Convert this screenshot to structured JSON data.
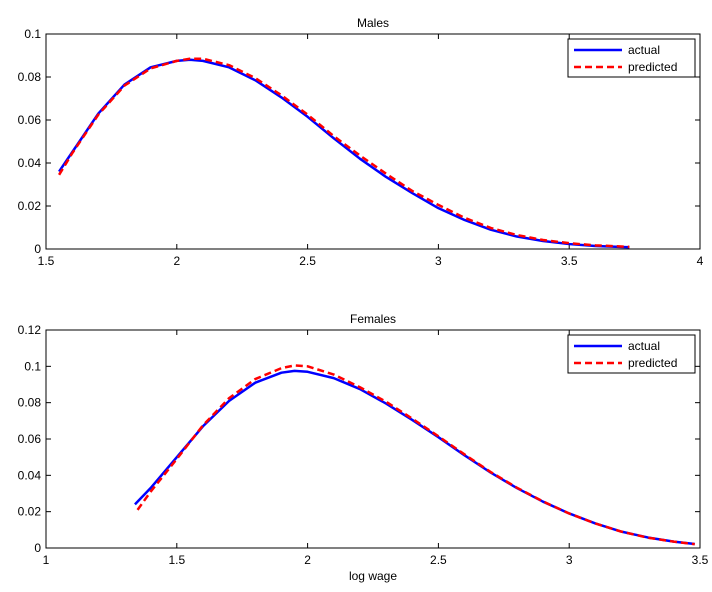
{
  "chart_data": [
    {
      "type": "line",
      "title": "Males",
      "xlabel": "",
      "ylabel": "",
      "xlim": [
        1.5,
        4
      ],
      "ylim": [
        0,
        0.1
      ],
      "xticks": [
        "1.5",
        "2",
        "2.5",
        "3",
        "3.5",
        "4"
      ],
      "yticks": [
        "0",
        "0.02",
        "0.04",
        "0.06",
        "0.08",
        "0.1"
      ],
      "xtick_values": [
        1.5,
        2,
        2.5,
        3,
        3.5,
        4
      ],
      "ytick_values": [
        0,
        0.02,
        0.04,
        0.06,
        0.08,
        0.1
      ],
      "grid": false,
      "legend_position": "top-right",
      "series": [
        {
          "name": "actual",
          "color": "#0000ff",
          "style": "solid",
          "x": [
            1.55,
            1.6,
            1.7,
            1.8,
            1.9,
            2.0,
            2.05,
            2.1,
            2.2,
            2.3,
            2.4,
            2.5,
            2.6,
            2.7,
            2.8,
            2.9,
            3.0,
            3.1,
            3.2,
            3.3,
            3.4,
            3.5,
            3.6,
            3.73
          ],
          "y": [
            0.036,
            0.045,
            0.063,
            0.0765,
            0.0845,
            0.0875,
            0.088,
            0.0875,
            0.0845,
            0.0785,
            0.0705,
            0.0615,
            0.0515,
            0.042,
            0.0335,
            0.026,
            0.019,
            0.0135,
            0.009,
            0.0058,
            0.0037,
            0.0023,
            0.0014,
            0.0008
          ]
        },
        {
          "name": "predicted",
          "color": "#ff0000",
          "style": "dashed",
          "x": [
            1.55,
            1.6,
            1.7,
            1.8,
            1.9,
            2.0,
            2.05,
            2.1,
            2.2,
            2.3,
            2.4,
            2.5,
            2.6,
            2.7,
            2.8,
            2.9,
            3.0,
            3.1,
            3.2,
            3.3,
            3.4,
            3.5,
            3.6,
            3.73
          ],
          "y": [
            0.0345,
            0.0445,
            0.0625,
            0.076,
            0.084,
            0.0875,
            0.0885,
            0.0885,
            0.0855,
            0.0795,
            0.0715,
            0.0625,
            0.0525,
            0.0435,
            0.035,
            0.027,
            0.0205,
            0.0145,
            0.0098,
            0.0065,
            0.0042,
            0.0027,
            0.0017,
            0.001
          ]
        }
      ]
    },
    {
      "type": "line",
      "title": "Females",
      "xlabel": "log wage",
      "ylabel": "",
      "xlim": [
        1,
        3.5
      ],
      "ylim": [
        0,
        0.12
      ],
      "xticks": [
        "1",
        "1.5",
        "2",
        "2.5",
        "3",
        "3.5"
      ],
      "yticks": [
        "0",
        "0.02",
        "0.04",
        "0.06",
        "0.08",
        "0.1",
        "0.12"
      ],
      "xtick_values": [
        1,
        1.5,
        2,
        2.5,
        3,
        3.5
      ],
      "ytick_values": [
        0,
        0.02,
        0.04,
        0.06,
        0.08,
        0.1,
        0.12
      ],
      "grid": false,
      "legend_position": "top-right",
      "series": [
        {
          "name": "actual",
          "color": "#0000ff",
          "style": "solid",
          "x": [
            1.34,
            1.4,
            1.5,
            1.6,
            1.7,
            1.8,
            1.9,
            1.95,
            2.0,
            2.1,
            2.2,
            2.3,
            2.4,
            2.5,
            2.6,
            2.7,
            2.8,
            2.9,
            3.0,
            3.1,
            3.2,
            3.3,
            3.4,
            3.48
          ],
          "y": [
            0.024,
            0.033,
            0.05,
            0.067,
            0.081,
            0.091,
            0.0965,
            0.0975,
            0.097,
            0.0935,
            0.0875,
            0.0795,
            0.0705,
            0.061,
            0.051,
            0.0415,
            0.033,
            0.0255,
            0.019,
            0.0135,
            0.009,
            0.0058,
            0.0035,
            0.0022
          ]
        },
        {
          "name": "predicted",
          "color": "#ff0000",
          "style": "dashed",
          "x": [
            1.35,
            1.4,
            1.5,
            1.6,
            1.7,
            1.8,
            1.9,
            1.95,
            2.0,
            2.1,
            2.2,
            2.3,
            2.4,
            2.5,
            2.6,
            2.7,
            2.8,
            2.9,
            3.0,
            3.1,
            3.2,
            3.3,
            3.4,
            3.48
          ],
          "y": [
            0.021,
            0.031,
            0.049,
            0.0675,
            0.0825,
            0.093,
            0.099,
            0.1005,
            0.1,
            0.0955,
            0.0885,
            0.0805,
            0.0712,
            0.0615,
            0.0515,
            0.0418,
            0.0332,
            0.0256,
            0.019,
            0.0135,
            0.009,
            0.0057,
            0.0035,
            0.0021
          ]
        }
      ]
    }
  ]
}
